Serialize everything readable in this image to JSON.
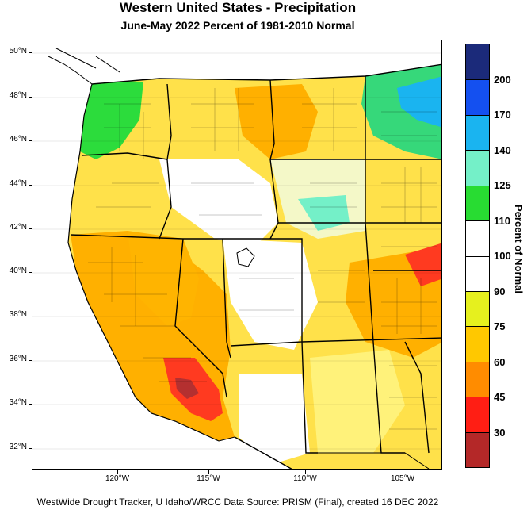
{
  "title": "Western United States - Precipitation",
  "subtitle": "June-May 2022  Percent of 1981-2010 Normal",
  "latitude_labels": [
    "50°N",
    "48°N",
    "46°N",
    "44°N",
    "42°N",
    "40°N",
    "38°N",
    "36°N",
    "34°N",
    "32°N"
  ],
  "longitude_labels": [
    "120°W",
    "115°W",
    "110°W",
    "105°W"
  ],
  "legend": {
    "title": "Percent of Normal",
    "labels": [
      "200",
      "170",
      "140",
      "125",
      "110",
      "100",
      "90",
      "75",
      "60",
      "45",
      "30"
    ],
    "colors": [
      "#1b2a7a",
      "#1450f0",
      "#1ab4f0",
      "#74f0c8",
      "#28dc32",
      "#ffffff",
      "#ffffff",
      "#e6f01e",
      "#ffc800",
      "#ff8c00",
      "#ff1e14",
      "#b42828"
    ]
  },
  "footer": "WestWide Drought Tracker, U Idaho/WRCC Data Source: PRISM (Final), created 16 DEC 2022"
}
